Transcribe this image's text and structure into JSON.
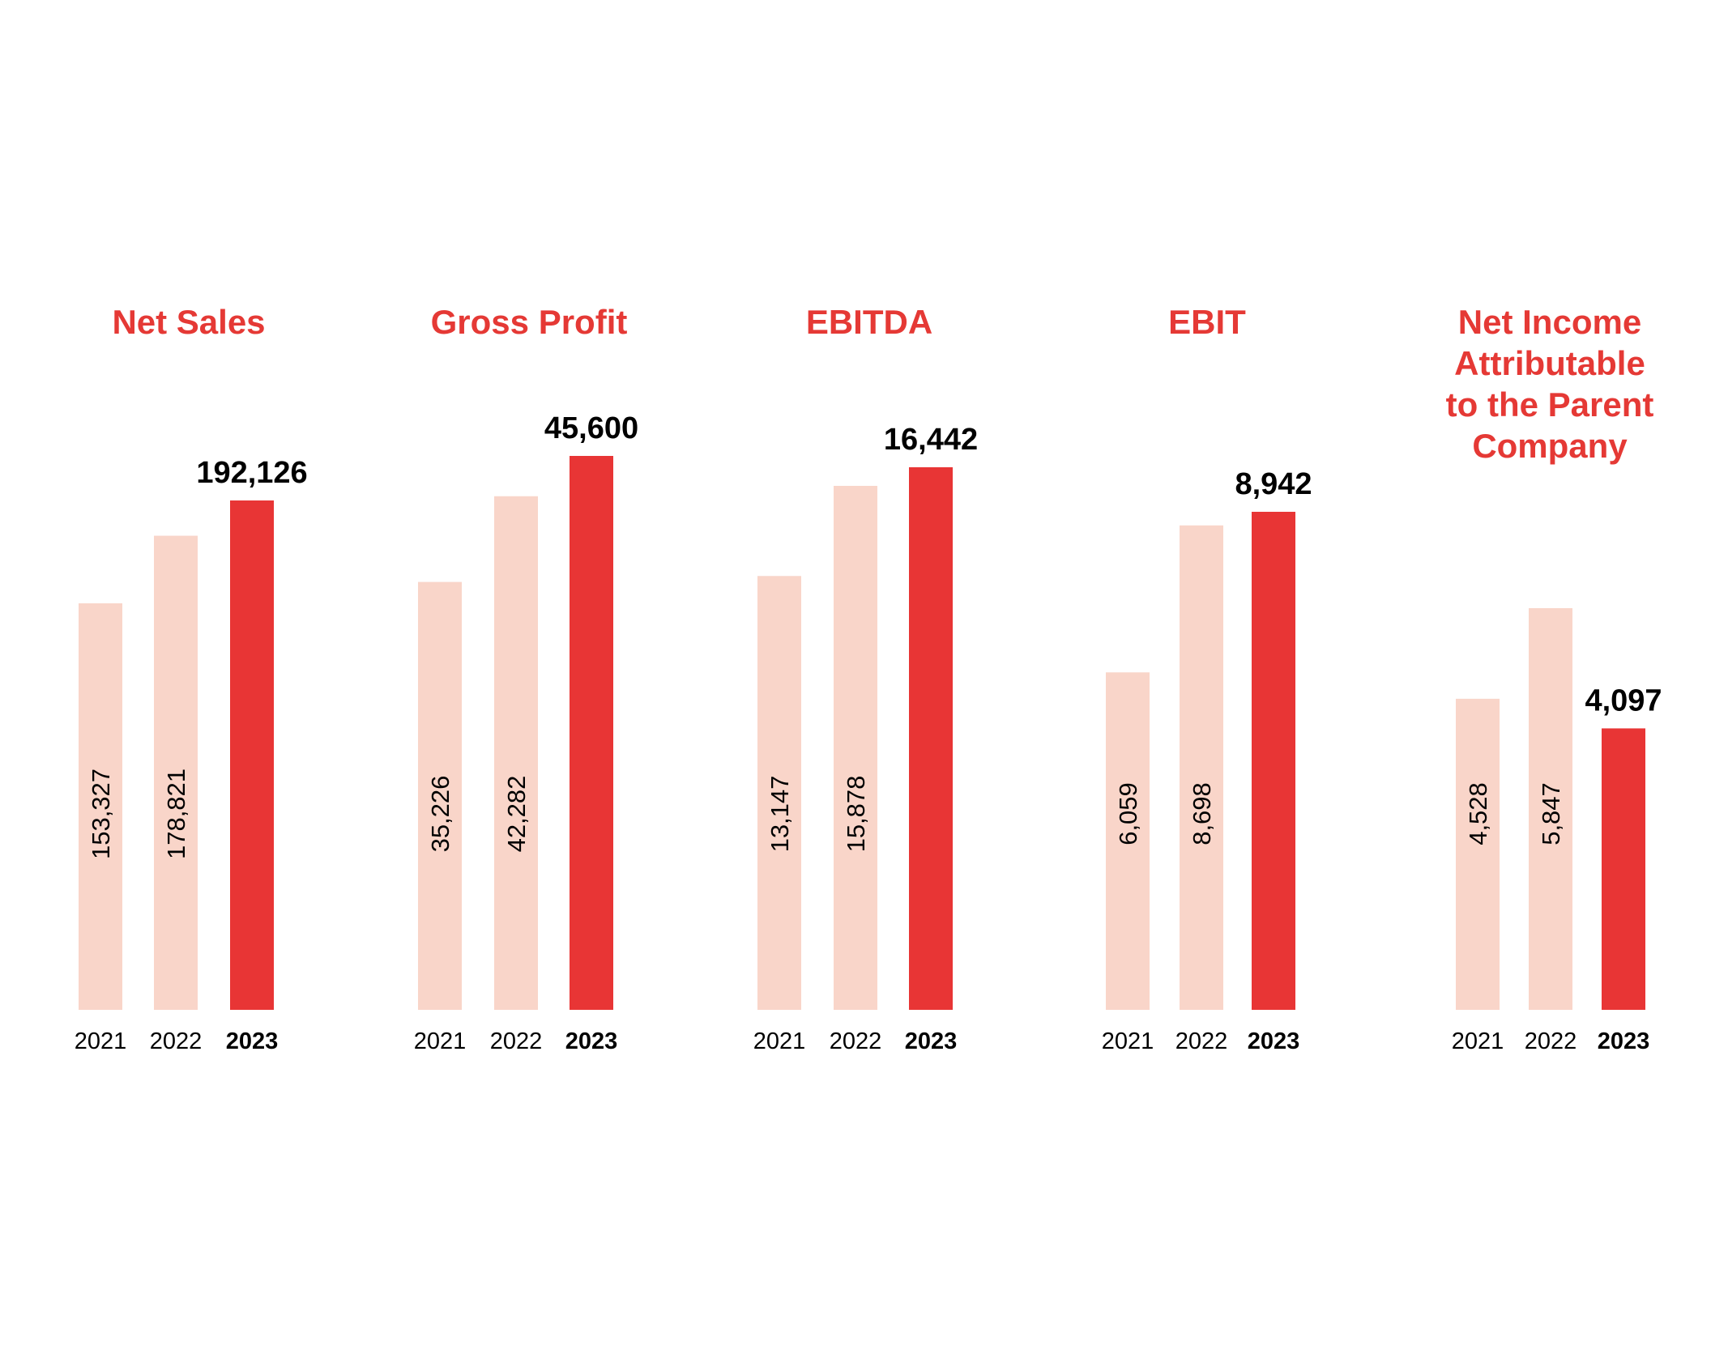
{
  "colors": {
    "title": "#e53935",
    "highlight_bar": "#e83535",
    "past_bar": "#f9d5c9",
    "text": "#000000"
  },
  "chart_data": [
    {
      "type": "bar",
      "title": "Net Sales",
      "categories": [
        "2021",
        "2022",
        "2023"
      ],
      "values": [
        153327,
        178821,
        192126
      ],
      "value_labels": [
        "153,327",
        "178,821",
        "192,126"
      ],
      "highlight": "2023"
    },
    {
      "type": "bar",
      "title": "Gross Profit",
      "categories": [
        "2021",
        "2022",
        "2023"
      ],
      "values": [
        35226,
        42282,
        45600
      ],
      "value_labels": [
        "35,226",
        "42,282",
        "45,600"
      ],
      "highlight": "2023"
    },
    {
      "type": "bar",
      "title": "EBITDA",
      "categories": [
        "2021",
        "2022",
        "2023"
      ],
      "values": [
        13147,
        15878,
        16442
      ],
      "value_labels": [
        "13,147",
        "15,878",
        "16,442"
      ],
      "highlight": "2023"
    },
    {
      "type": "bar",
      "title": "EBIT",
      "categories": [
        "2021",
        "2022",
        "2023"
      ],
      "values": [
        6059,
        8698,
        8942
      ],
      "value_labels": [
        "6,059",
        "8,698",
        "8,942"
      ],
      "highlight": "2023"
    },
    {
      "type": "bar",
      "title": "Net Income Attributable to the Parent Company",
      "title_lines": [
        "Net Income",
        "Attributable",
        "to the Parent",
        "Company"
      ],
      "categories": [
        "2021",
        "2022",
        "2023"
      ],
      "values": [
        4528,
        5847,
        4097
      ],
      "value_labels": [
        "4,528",
        "5,847",
        "4,097"
      ],
      "highlight": "2023"
    }
  ]
}
